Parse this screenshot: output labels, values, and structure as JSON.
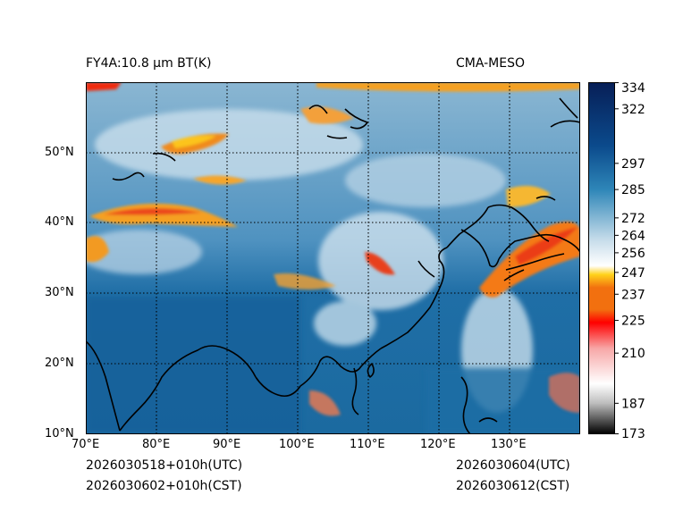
{
  "header": {
    "title_left": "FY4A:10.8 µm BT(K)",
    "title_right": "CMA-MESO"
  },
  "footer": {
    "init_utc": "2026030518+010h(UTC)",
    "init_cst": "2026030602+010h(CST)",
    "valid_utc": "2026030604(UTC)",
    "valid_cst": "2026030612(CST)"
  },
  "map": {
    "lon_range": [
      70,
      140
    ],
    "lat_range": [
      10,
      60
    ],
    "x_ticks": [
      "70°E",
      "80°E",
      "90°E",
      "100°E",
      "110°E",
      "120°E",
      "130°E"
    ],
    "y_ticks": [
      "10°N",
      "20°N",
      "30°N",
      "40°N",
      "50°N"
    ]
  },
  "colorbar": {
    "vmin": 173,
    "vmax": 334,
    "ticks": [
      "173",
      "187",
      "210",
      "225",
      "237",
      "247",
      "256",
      "264",
      "272",
      "285",
      "297",
      "322",
      "334"
    ],
    "tick_values": [
      173,
      187,
      210,
      225,
      237,
      247,
      256,
      264,
      272,
      285,
      297,
      322,
      334
    ],
    "colors": {
      "darkest": "#000000",
      "gray": "#bdbdbd",
      "white": "#ffffff",
      "pink": "#f7a8a8",
      "red": "#ff0000",
      "orange": "#f2700f",
      "yellow": "#ffd21a",
      "light_blue": "#c6dcea",
      "mid_blue": "#2e86b8",
      "deep_blue": "#0b4a8c",
      "navy": "#071f57"
    }
  }
}
